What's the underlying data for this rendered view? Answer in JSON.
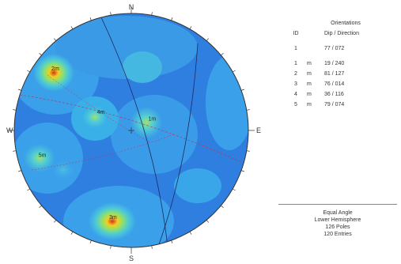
{
  "compass": {
    "north": "N",
    "south": "S",
    "east": "E",
    "west": "W"
  },
  "legend": {
    "title": "Orientations",
    "id_header": "ID",
    "value_header": "Dip / Direction",
    "mean": {
      "id": "1",
      "value": "77 / 072"
    },
    "sets": [
      {
        "id": "1",
        "m": "m",
        "value": "19 / 240"
      },
      {
        "id": "2",
        "m": "m",
        "value": "81 / 127"
      },
      {
        "id": "3",
        "m": "m",
        "value": "76 / 014"
      },
      {
        "id": "4",
        "m": "m",
        "value": "36 / 116"
      },
      {
        "id": "5",
        "m": "m",
        "value": "79 / 074"
      }
    ]
  },
  "footer": {
    "projection": "Equal Angle",
    "hemisphere": "Lower Hemisphere",
    "poles": "126 Poles",
    "entries": "120 Entries"
  },
  "clusters": [
    {
      "label": "1m",
      "dip": 19,
      "direction": 240
    },
    {
      "label": "2m",
      "dip": 81,
      "direction": 127
    },
    {
      "label": "3m",
      "dip": 76,
      "direction": 14
    },
    {
      "label": "4m",
      "dip": 36,
      "direction": 116
    },
    {
      "label": "5m",
      "dip": 79,
      "direction": 74
    }
  ],
  "colors": {
    "background": "#2f7fe0",
    "low": "#3aa0ea",
    "mid": "#48c8d8",
    "high": "#7ee08a",
    "peak": "#e8e030",
    "core": "#e84020",
    "great_circle": "#1a2a60",
    "mean_plane": "#c03060"
  }
}
